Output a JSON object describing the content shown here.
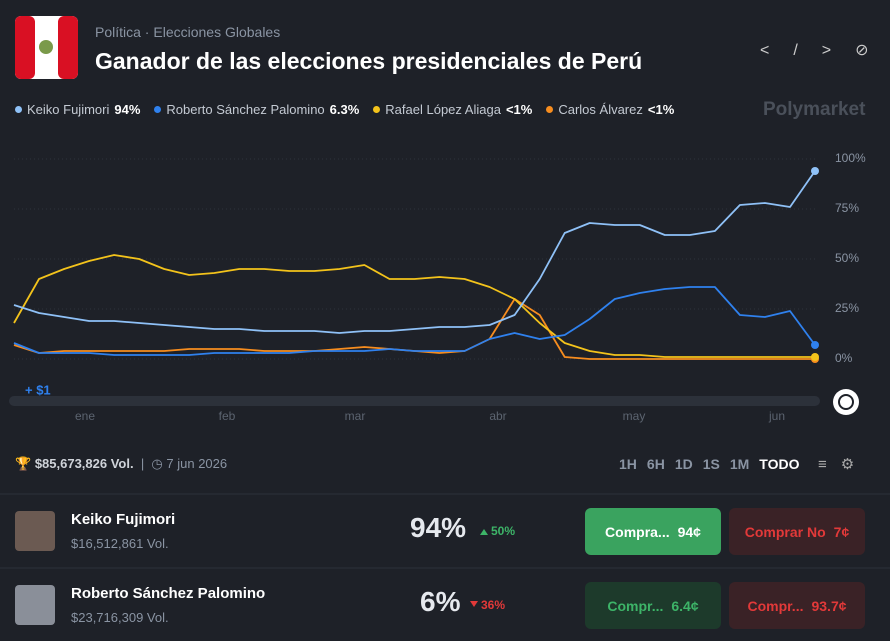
{
  "header": {
    "breadcrumb": [
      "Política",
      "Elecciones Globales"
    ],
    "title": "Ganador de las elecciones presidenciales de Perú",
    "brand": "Polymarket"
  },
  "chart_data": {
    "type": "line",
    "series": [
      {
        "name": "Keiko Fujimori",
        "legend_value": "94%",
        "color": "#8fc1f7",
        "values": [
          27,
          23,
          21,
          19,
          19,
          18,
          17,
          16,
          15,
          15,
          14,
          14,
          14,
          13,
          14,
          14,
          15,
          16,
          16,
          17,
          22,
          40,
          63,
          68,
          67,
          67,
          62,
          62,
          64,
          77,
          78,
          76,
          94
        ]
      },
      {
        "name": "Roberto Sánchez Palomino",
        "legend_value": "6.3%",
        "color": "#2f81ee",
        "values": [
          8,
          3,
          3,
          3,
          2,
          2,
          2,
          2,
          3,
          3,
          3,
          3,
          4,
          4,
          4,
          5,
          4,
          4,
          4,
          10,
          13,
          10,
          12,
          20,
          30,
          33,
          35,
          36,
          36,
          22,
          21,
          24,
          7
        ]
      },
      {
        "name": "Rafael López Aliaga",
        "legend_value": "<1%",
        "color": "#f3c31b",
        "values": [
          18,
          40,
          45,
          49,
          52,
          50,
          45,
          42,
          43,
          45,
          45,
          44,
          44,
          45,
          47,
          40,
          40,
          41,
          40,
          36,
          30,
          18,
          8,
          4,
          2,
          2,
          1,
          1,
          1,
          1,
          1,
          1,
          1
        ]
      },
      {
        "name": "Carlos Álvarez",
        "legend_value": "<1%",
        "color": "#f78d1f",
        "values": [
          7,
          3,
          4,
          4,
          4,
          4,
          4,
          5,
          5,
          5,
          4,
          4,
          4,
          5,
          6,
          5,
          4,
          3,
          4,
          10,
          30,
          22,
          1,
          0,
          0,
          0,
          0,
          0,
          0,
          0,
          0,
          0,
          0
        ]
      }
    ],
    "ylim": [
      0,
      100
    ],
    "yticks": [
      {
        "value": 0,
        "label": "0%"
      },
      {
        "value": 25,
        "label": "25%"
      },
      {
        "value": 50,
        "label": "50%"
      },
      {
        "value": 75,
        "label": "75%"
      },
      {
        "value": 100,
        "label": "100%"
      }
    ],
    "x_labels": [
      "ene",
      "feb",
      "mar",
      "abr",
      "may",
      "jun"
    ],
    "annotation": "+ $1",
    "grid": true
  },
  "footer": {
    "volume": "$85,673,826 Vol.",
    "date": "7 jun 2026",
    "ranges": [
      "1H",
      "6H",
      "1D",
      "1S",
      "1M",
      "TODO"
    ]
  },
  "outcomes": [
    {
      "name": "Keiko Fujimori",
      "volume": "$16,512,861 Vol.",
      "chance": "94%",
      "change": "50%",
      "yes_label": "Compra...",
      "yes_price": "94¢",
      "no_label": "Comprar No",
      "no_price": "7¢"
    },
    {
      "name": "Roberto Sánchez Palomino",
      "volume": "$23,716,309 Vol.",
      "chance": "6%",
      "change": "36%",
      "yes_label": "Compr...",
      "yes_price": "6.4¢",
      "no_label": "Compr...",
      "no_price": "93.7¢"
    }
  ]
}
